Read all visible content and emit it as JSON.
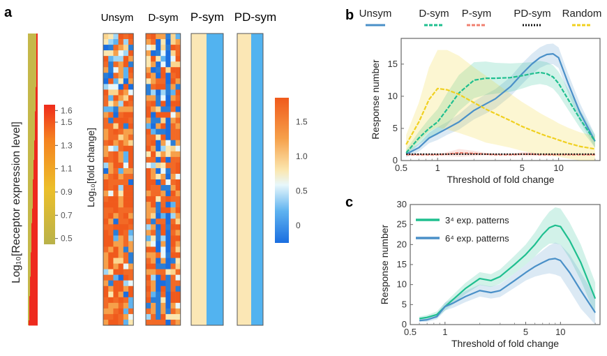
{
  "panel_a": {
    "label": "a",
    "receptor_axis_label": "Log₁₀[Receptor expression level]",
    "receptor_ticks": [
      "1.6",
      "1.5",
      "1.3",
      "1.1",
      "0.9",
      "0.7",
      "0.5"
    ],
    "fold_axis_label": "Log₁₀[fold change]",
    "fold_ticks": [
      "1.5",
      "1.0",
      "0.5",
      "0"
    ],
    "heatmap_titles": [
      "Unsym",
      "D-sym",
      "P-sym",
      "PD-sym"
    ]
  },
  "panel_b": {
    "label": "b",
    "legend": [
      {
        "name": "Unsym",
        "color": "#4a90c8",
        "style": "solid"
      },
      {
        "name": "D-sym",
        "color": "#1fbf8f",
        "style": "dashed"
      },
      {
        "name": "P-sym",
        "color": "#f08070",
        "style": "dashed"
      },
      {
        "name": "PD-sym",
        "color": "#111111",
        "style": "dotted"
      },
      {
        "name": "Random",
        "color": "#f0d020",
        "style": "dashed"
      }
    ]
  },
  "panel_c": {
    "label": "c",
    "legend": [
      {
        "name": "3⁴ exp. patterns",
        "color": "#1fbf8f"
      },
      {
        "name": "6⁴ exp. patterns",
        "color": "#4a90c8"
      }
    ]
  },
  "chart_data": [
    {
      "type": "line",
      "panel": "b",
      "xlabel": "Threshold of fold change",
      "ylabel": "Response number",
      "xscale": "log",
      "xlim": [
        0.5,
        22
      ],
      "ylim": [
        0,
        19
      ],
      "xticks": [
        0.5,
        1,
        5,
        10
      ],
      "xtick_labels": [
        "0.5",
        "1",
        "5",
        "10"
      ],
      "yticks": [
        0,
        5,
        10,
        15
      ],
      "ytick_labels": [
        "0",
        "5",
        "10",
        "15"
      ],
      "x": [
        0.55,
        0.7,
        0.85,
        1.0,
        1.2,
        1.5,
        2.0,
        2.5,
        3.0,
        4.0,
        5.0,
        6.0,
        7.0,
        8.0,
        9.0,
        10.0,
        12.0,
        15.0,
        20.0
      ],
      "series": [
        {
          "name": "Unsym",
          "color": "#4a90c8",
          "values": [
            1.0,
            2.0,
            3.5,
            4.2,
            5.0,
            6.0,
            7.8,
            8.8,
            9.6,
            11.5,
            13.5,
            15.0,
            16.0,
            16.5,
            16.6,
            16.0,
            12.0,
            7.5,
            3.0
          ],
          "band": [
            0.5,
            0.6,
            0.8,
            1.0,
            1.0,
            1.2,
            1.4,
            1.5,
            1.5,
            1.5,
            1.6,
            1.6,
            1.6,
            1.6,
            1.6,
            1.6,
            1.5,
            1.4,
            1.0
          ]
        },
        {
          "name": "D-sym",
          "color": "#1fbf8f",
          "values": [
            1.2,
            3.5,
            5.0,
            6.0,
            8.0,
            10.5,
            12.5,
            12.8,
            12.8,
            12.9,
            13.2,
            13.5,
            13.7,
            13.5,
            13.0,
            12.0,
            9.5,
            6.5,
            3.0
          ],
          "band": [
            0.5,
            1.0,
            1.5,
            2.0,
            2.5,
            2.8,
            2.8,
            2.6,
            2.4,
            2.2,
            2.0,
            1.8,
            1.8,
            1.8,
            1.8,
            1.8,
            1.6,
            1.4,
            1.0
          ]
        },
        {
          "name": "P-sym",
          "color": "#f08070",
          "values": [
            0.9,
            0.9,
            0.9,
            0.9,
            1.0,
            1.2,
            1.1,
            1.0,
            0.9,
            0.9,
            1.0,
            1.0,
            0.9,
            0.9,
            0.9,
            0.9,
            0.9,
            0.9,
            0.9
          ],
          "band": [
            0.1,
            0.1,
            0.1,
            0.1,
            0.3,
            0.6,
            0.4,
            0.2,
            0.1,
            0.1,
            0.3,
            0.3,
            0.1,
            0.1,
            0.1,
            0.1,
            0.1,
            0.1,
            0.1
          ]
        },
        {
          "name": "PD-sym",
          "color": "#111111",
          "values": [
            1.0,
            1.0,
            1.0,
            1.0,
            1.0,
            1.0,
            1.0,
            1.0,
            1.0,
            1.0,
            1.0,
            1.0,
            1.0,
            1.0,
            1.0,
            1.0,
            1.0,
            1.0,
            1.0
          ],
          "band": [
            0.05,
            0.05,
            0.05,
            0.05,
            0.05,
            0.05,
            0.05,
            0.05,
            0.05,
            0.05,
            0.05,
            0.05,
            0.05,
            0.05,
            0.05,
            0.05,
            0.05,
            0.05,
            0.05
          ]
        },
        {
          "name": "Random",
          "color": "#f0d020",
          "values": [
            2.5,
            6.0,
            9.5,
            11.2,
            11.0,
            10.3,
            9.0,
            8.0,
            7.3,
            6.2,
            5.3,
            4.7,
            4.2,
            3.8,
            3.5,
            3.2,
            2.7,
            2.2,
            1.8
          ],
          "band": [
            1.5,
            3.0,
            5.0,
            6.0,
            6.2,
            6.0,
            5.5,
            5.2,
            4.8,
            4.2,
            3.8,
            3.5,
            3.2,
            3.0,
            2.8,
            2.6,
            2.4,
            2.2,
            2.0
          ]
        }
      ]
    },
    {
      "type": "line",
      "panel": "c",
      "xlabel": "Threshold of fold change",
      "ylabel": "Response number",
      "xscale": "log",
      "xlim": [
        0.5,
        22
      ],
      "ylim": [
        0,
        30
      ],
      "xticks": [
        0.5,
        1,
        5,
        10
      ],
      "xtick_labels": [
        "0.5",
        "1",
        "5",
        "10"
      ],
      "yticks": [
        0,
        5,
        10,
        15,
        20,
        25,
        30
      ],
      "ytick_labels": [
        "0",
        "5",
        "10",
        "15",
        "20",
        "25",
        "30"
      ],
      "x": [
        0.6,
        0.7,
        0.85,
        1.0,
        1.2,
        1.5,
        2.0,
        2.5,
        3.0,
        4.0,
        5.0,
        6.0,
        7.0,
        8.0,
        9.0,
        10.0,
        12.0,
        15.0,
        20.0
      ],
      "series": [
        {
          "name": "3⁴ exp. patterns",
          "color": "#1fbf8f",
          "values": [
            1.5,
            1.8,
            2.5,
            4.5,
            6.5,
            9.0,
            11.5,
            11.0,
            12.0,
            15.0,
            17.5,
            20.0,
            22.5,
            24.2,
            24.8,
            24.5,
            21.0,
            15.5,
            6.5
          ],
          "band": [
            0.5,
            0.6,
            0.8,
            1.0,
            1.2,
            1.4,
            1.6,
            1.6,
            1.8,
            2.2,
            2.5,
            3.0,
            3.5,
            4.0,
            4.5,
            4.5,
            4.5,
            4.5,
            4.0
          ]
        },
        {
          "name": "6⁴ exp. patterns",
          "color": "#4a90c8",
          "values": [
            1.0,
            1.2,
            2.0,
            4.5,
            5.5,
            7.0,
            8.5,
            8.0,
            8.5,
            11.0,
            13.0,
            14.5,
            15.5,
            16.3,
            16.5,
            16.0,
            13.0,
            8.5,
            3.0
          ],
          "band": [
            0.3,
            0.5,
            0.7,
            1.0,
            1.2,
            1.4,
            1.5,
            1.5,
            1.6,
            1.8,
            2.0,
            2.5,
            3.0,
            3.5,
            4.0,
            4.0,
            4.5,
            4.5,
            4.0
          ]
        }
      ]
    }
  ]
}
